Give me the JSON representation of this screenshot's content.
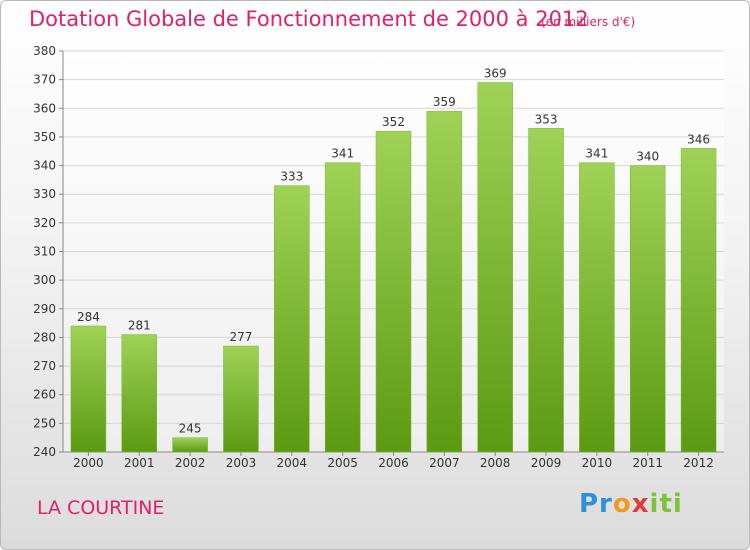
{
  "header": {
    "title": "Dotation Globale de Fonctionnement de 2000 à 2012",
    "subtitle": "(en milliers d'€)"
  },
  "footer": {
    "commune": "LA COURTINE",
    "logo": [
      "Pr",
      "o",
      "x",
      "iti"
    ]
  },
  "colors": {
    "title": "#e0206a",
    "bar_top": "#9fd256",
    "bar_bottom": "#5c9a12",
    "grid": "#d6d6d6"
  },
  "chart_data": {
    "type": "bar",
    "categories": [
      "2000",
      "2001",
      "2002",
      "2003",
      "2004",
      "2005",
      "2006",
      "2007",
      "2008",
      "2009",
      "2010",
      "2011",
      "2012"
    ],
    "values": [
      284,
      281,
      245,
      277,
      333,
      341,
      352,
      359,
      369,
      353,
      341,
      340,
      346
    ],
    "data_labels": [
      "284",
      "281",
      "245",
      "277",
      "333",
      "341",
      "352",
      "359",
      "369",
      "353",
      "341",
      "340",
      "346"
    ],
    "ylim": [
      240,
      380
    ],
    "yticks": [
      240,
      250,
      260,
      270,
      280,
      290,
      300,
      310,
      320,
      330,
      340,
      350,
      360,
      370,
      380
    ],
    "grid": true,
    "xlabel": "",
    "ylabel": ""
  }
}
